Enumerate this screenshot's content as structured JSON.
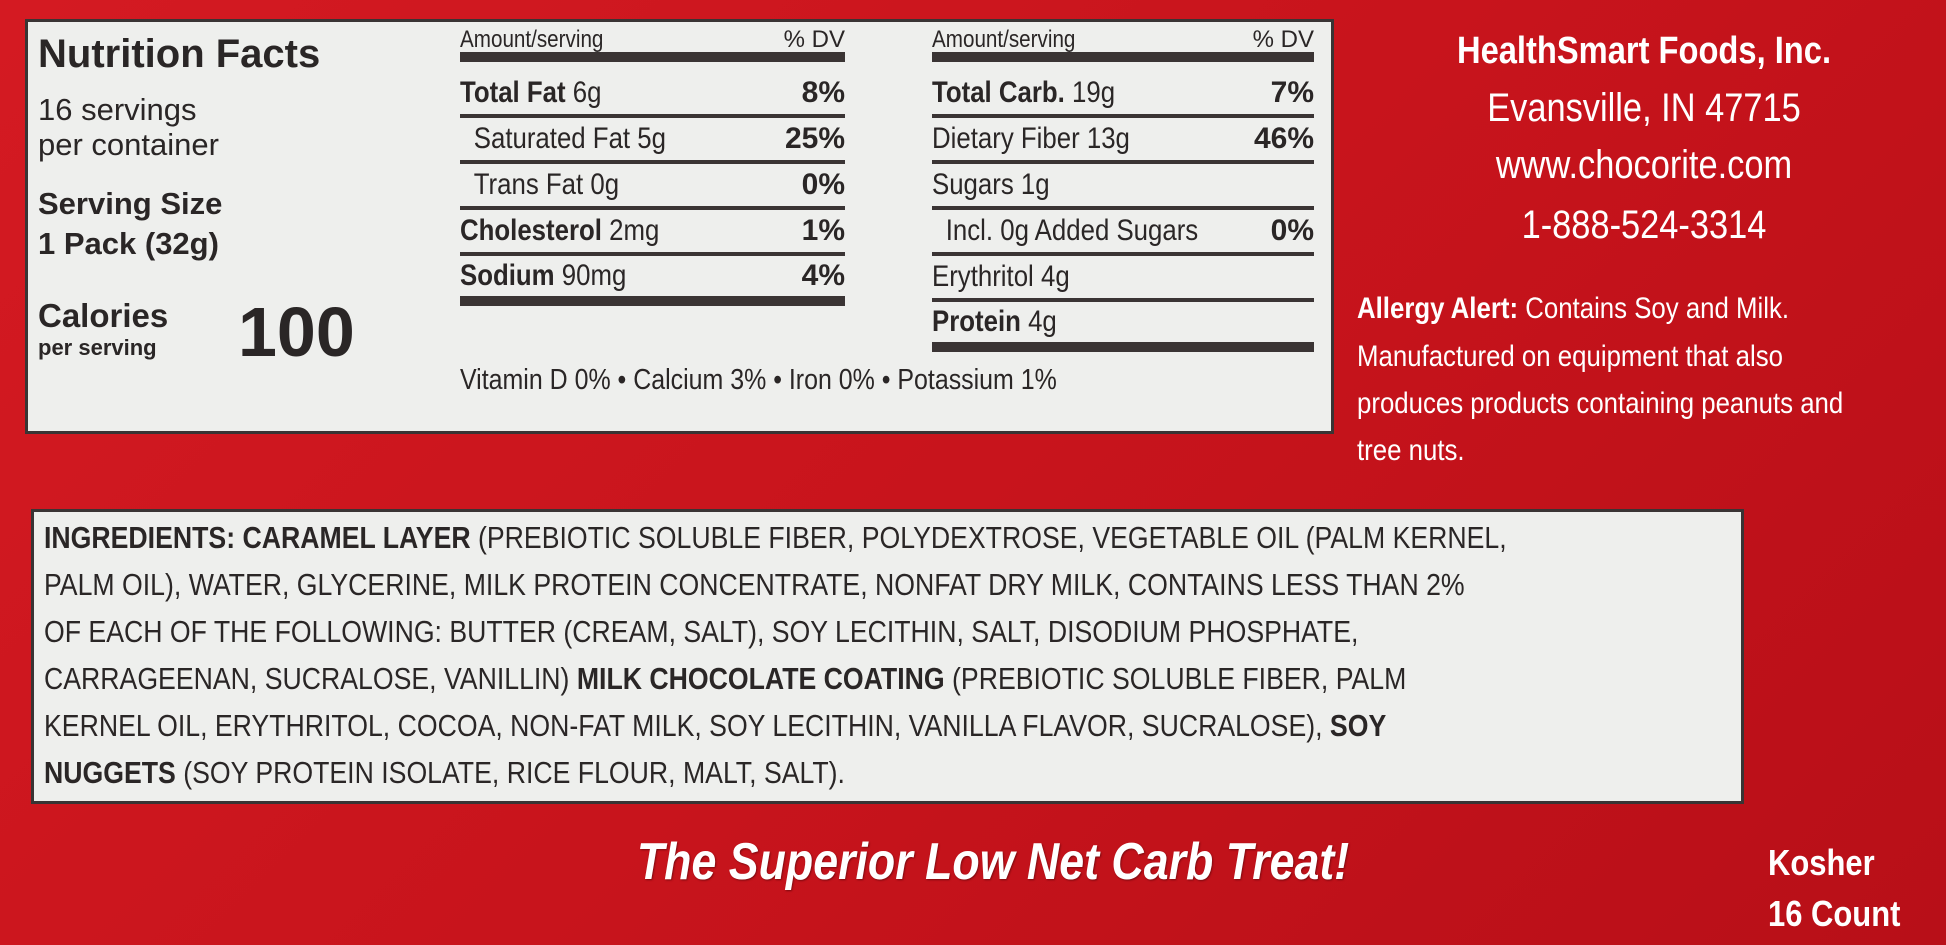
{
  "nutrition": {
    "title": "Nutrition Facts",
    "servings_line1": "16 servings",
    "servings_line2": "per container",
    "serving_size_label": "Serving Size",
    "serving_size_value": "1 Pack (32g)",
    "calories_label": "Calories",
    "calories_sub": "per serving",
    "calories_value": "100",
    "header_amount": "Amount/serving",
    "header_dv": "% DV",
    "left_rows": [
      {
        "name": "Total Fat",
        "amount": "6g",
        "dv": "8%",
        "bold": true
      },
      {
        "name": "Saturated Fat",
        "amount": "5g",
        "dv": "25%",
        "bold": false
      },
      {
        "name": "Trans Fat",
        "amount": "0g",
        "dv": "0%",
        "bold": false
      },
      {
        "name": "Cholesterol",
        "amount": "2mg",
        "dv": "1%",
        "bold": true
      },
      {
        "name": "Sodium",
        "amount": "90mg",
        "dv": "4%",
        "bold": true
      }
    ],
    "right_rows": [
      {
        "name": "Total Carb.",
        "amount": "19g",
        "dv": "7%",
        "bold": true
      },
      {
        "name": "Dietary Fiber",
        "amount": "13g",
        "dv": "46%",
        "bold": false
      },
      {
        "name": "Sugars",
        "amount": "1g",
        "dv": "",
        "bold": false
      },
      {
        "name": "Incl. 0g Added Sugars",
        "amount": "",
        "dv": "0%",
        "bold": false
      },
      {
        "name": "Erythritol",
        "amount": "4g",
        "dv": "",
        "bold": false
      },
      {
        "name": "Protein",
        "amount": "4g",
        "dv": "",
        "bold": true
      }
    ],
    "vitamins": "Vitamin D  0% • Calcium  3% • Iron  0% • Potassium 1%"
  },
  "company": {
    "name": "HealthSmart Foods, Inc.",
    "city": "Evansville, IN 47715",
    "website": "www.chocorite.com",
    "phone": "1-888-524-3314"
  },
  "allergy": {
    "label": "Allergy Alert:",
    "line1": " Contains Soy and Milk.",
    "line2": "Manufactured on equipment that also",
    "line3": "produces products containing peanuts and",
    "line4": "tree nuts."
  },
  "ingredients": {
    "lines": [
      [
        {
          "b": "INGREDIENTS: CARAMEL LAYER"
        },
        {
          "t": " (PREBIOTIC SOLUBLE FIBER, POLYDEXTROSE, VEGETABLE OIL (PALM KERNEL,"
        }
      ],
      [
        {
          "t": "PALM OIL), WATER, GLYCERINE, MILK PROTEIN CONCENTRATE, NONFAT DRY MILK, CONTAINS LESS THAN 2%"
        }
      ],
      [
        {
          "t": "OF EACH OF THE FOLLOWING: BUTTER (CREAM, SALT), SOY LECITHIN, SALT, DISODIUM PHOSPHATE,"
        }
      ],
      [
        {
          "t": "CARRAGEENAN, SUCRALOSE, VANILLIN) "
        },
        {
          "b": "MILK CHOCOLATE COATING"
        },
        {
          "t": " (PREBIOTIC SOLUBLE FIBER, PALM"
        }
      ],
      [
        {
          "t": "KERNEL OIL, ERYTHRITOL, COCOA, NON-FAT MILK, SOY LECITHIN, VANILLA FLAVOR, SUCRALOSE), "
        },
        {
          "b": "SOY"
        }
      ],
      [
        {
          "b": "NUGGETS"
        },
        {
          "t": " (SOY PROTEIN ISOLATE, RICE FLOUR, MALT, SALT)."
        }
      ]
    ]
  },
  "slogan": "The Superior Low Net Carb Treat!",
  "kosher": "Kosher",
  "count": "16 Count",
  "colors": {
    "background": "#c8141c",
    "panel": "#eeefed",
    "text": "#2a2626"
  }
}
